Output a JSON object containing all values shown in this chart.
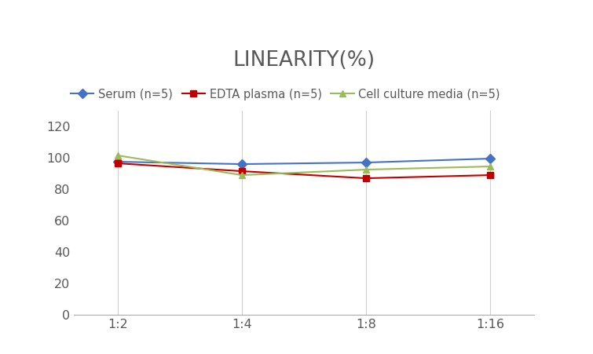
{
  "title": "LINEARITY(%)",
  "title_fontsize": 19,
  "title_fontweight": "normal",
  "title_color": "#595959",
  "x_labels": [
    "1:2",
    "1:4",
    "1:8",
    "1:16"
  ],
  "x_positions": [
    0,
    1,
    2,
    3
  ],
  "series": [
    {
      "label": "Serum (n=5)",
      "values": [
        97.5,
        96.0,
        97.0,
        99.5
      ],
      "color": "#4472C4",
      "marker": "D",
      "markersize": 6,
      "linewidth": 1.5
    },
    {
      "label": "EDTA plasma (n=5)",
      "values": [
        96.5,
        91.5,
        87.0,
        89.0
      ],
      "color": "#C00000",
      "marker": "s",
      "markersize": 6,
      "linewidth": 1.5
    },
    {
      "label": "Cell culture media (n=5)",
      "values": [
        101.5,
        89.0,
        92.5,
        94.5
      ],
      "color": "#9BBB59",
      "marker": "^",
      "markersize": 6,
      "linewidth": 1.5
    }
  ],
  "ylim": [
    0,
    130
  ],
  "yticks": [
    0,
    20,
    40,
    60,
    80,
    100,
    120
  ],
  "grid_color": "#D0D0D0",
  "background_color": "#FFFFFF",
  "legend_fontsize": 10.5,
  "tick_fontsize": 11.5,
  "tick_color": "#595959"
}
